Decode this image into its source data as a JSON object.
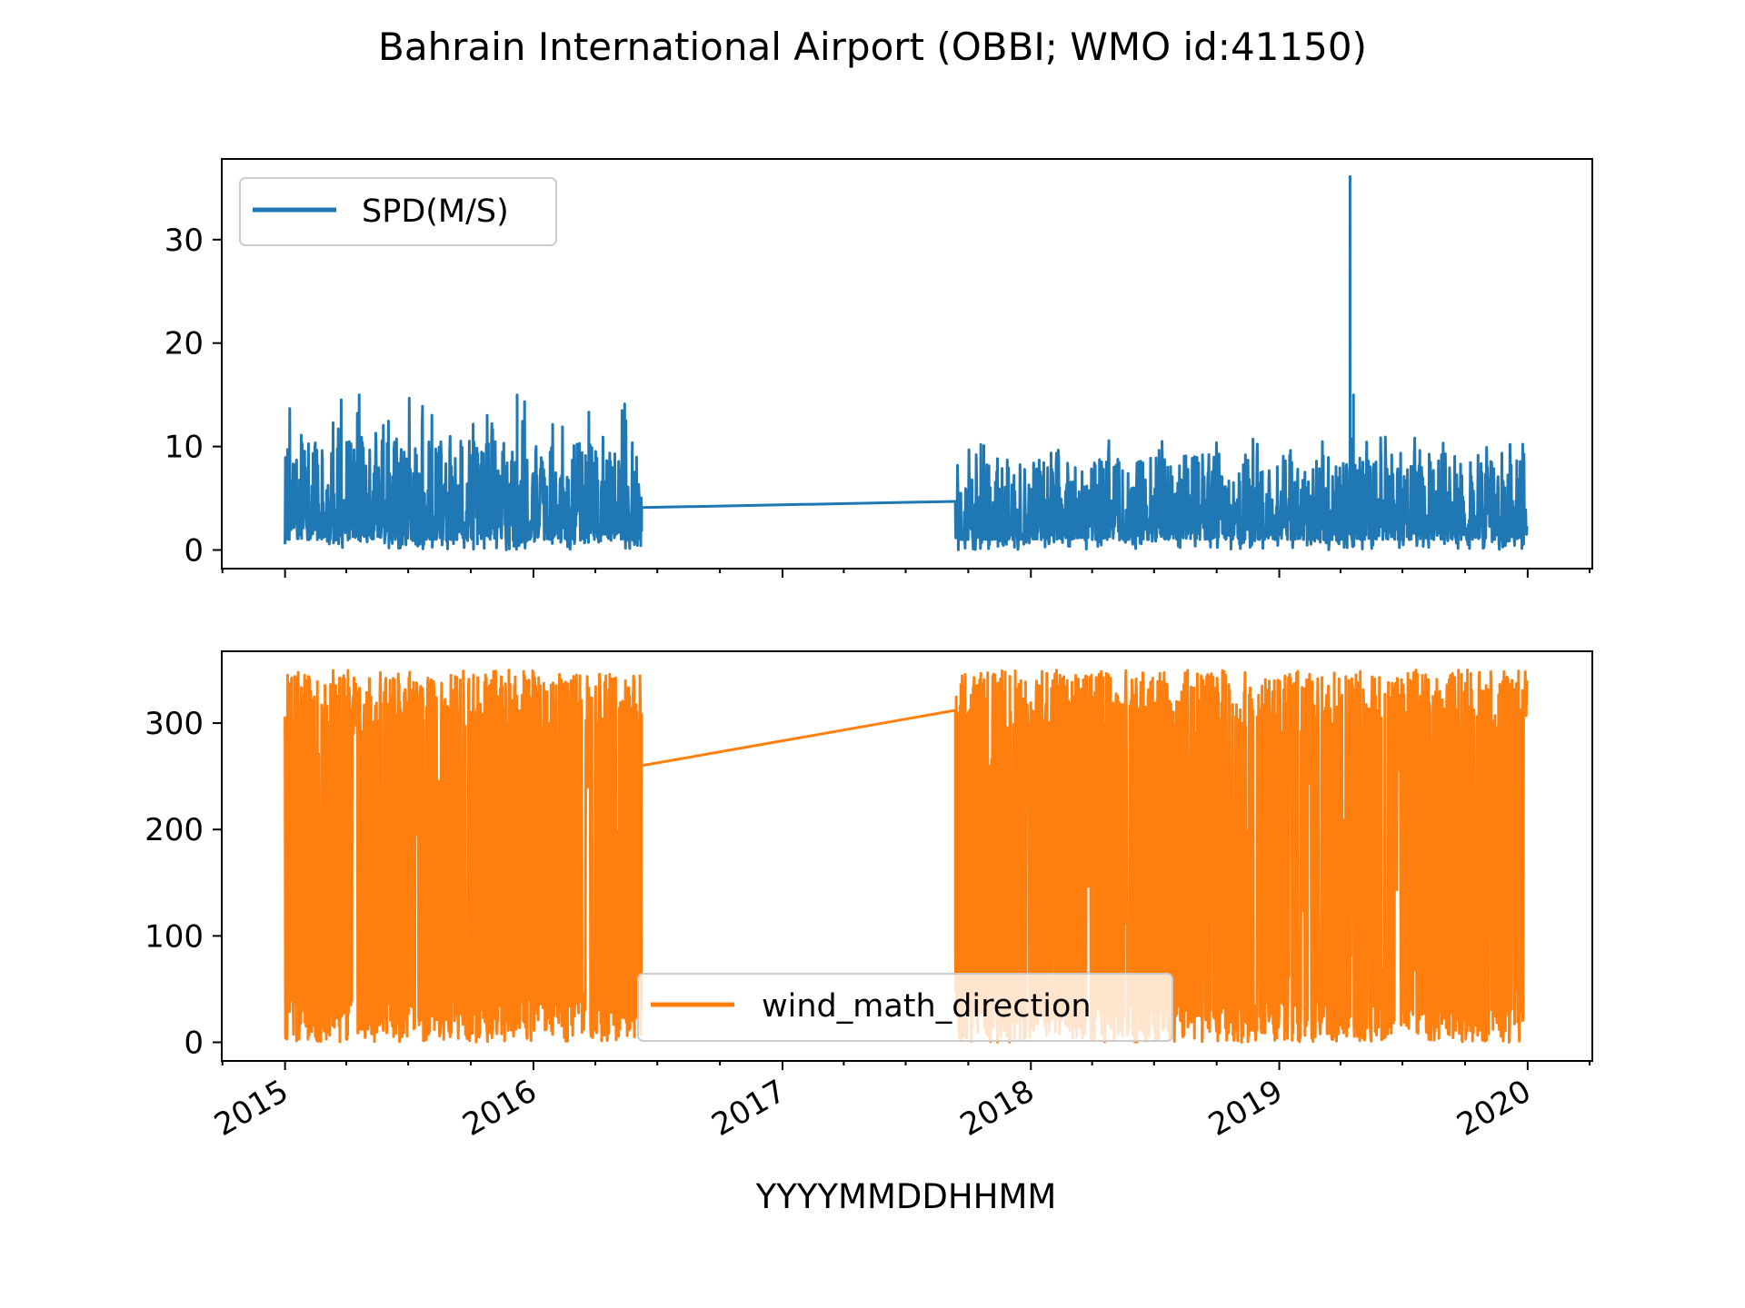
{
  "chart_data": {
    "title": "Bahrain International Airport (OBBI; WMO id:41150)",
    "type": "line",
    "xlabel": "YYYYMMDDHHMM",
    "x_type": "date",
    "xlim": [
      "2014-09-30",
      "2020-04-05"
    ],
    "x_ticks": [
      "2015",
      "2016",
      "2017",
      "2018",
      "2019",
      "2020"
    ],
    "x_tick_dates": [
      "2015-01-01",
      "2016-01-01",
      "2017-01-01",
      "2018-01-01",
      "2019-01-01",
      "2020-01-01"
    ],
    "grid": false,
    "panels": [
      {
        "ylabel": "",
        "ylim": [
          -1.8,
          37.8
        ],
        "y_ticks": [
          0,
          10,
          20,
          30
        ],
        "legend": {
          "label": "SPD(M/S)",
          "placement": "upper left"
        },
        "series": [
          {
            "name": "SPD(M/S)",
            "color": "#1f77b4",
            "segments": [
              {
                "start": "2015-01-01",
                "end": "2016-06-08",
                "min": 0,
                "typical_low": 1,
                "typical_high": 9,
                "peak": 15
              },
              {
                "start": "2017-09-12",
                "end": "2019-12-31",
                "min": 0,
                "typical_low": 1,
                "typical_high": 8,
                "peak": 11
              }
            ],
            "gap_bridge": [
              {
                "x": "2016-06-08",
                "y": 4.1
              },
              {
                "x": "2017-09-12",
                "y": 4.7
              }
            ],
            "notable_points": [
              {
                "x": "2019-04-15",
                "y": 36.1
              },
              {
                "x": "2019-04-20",
                "y": 15
              },
              {
                "x": "2015-12-08",
                "y": 15
              },
              {
                "x": "2015-04-20",
                "y": 15
              }
            ]
          }
        ]
      },
      {
        "ylabel": "",
        "ylim": [
          -17.5,
          367.5
        ],
        "y_ticks": [
          0,
          100,
          200,
          300
        ],
        "legend": {
          "label": "wind_math_direction",
          "placement": "lower center"
        },
        "series": [
          {
            "name": "wind_math_direction",
            "color": "#ff7f0e",
            "segments": [
              {
                "start": "2015-01-01",
                "end": "2016-06-08",
                "min": 0,
                "max": 350
              },
              {
                "start": "2017-09-12",
                "end": "2019-12-31",
                "min": 0,
                "max": 350
              }
            ],
            "gap_bridge": [
              {
                "x": "2016-06-08",
                "y": 260
              },
              {
                "x": "2017-09-12",
                "y": 312
              }
            ]
          }
        ]
      }
    ]
  }
}
